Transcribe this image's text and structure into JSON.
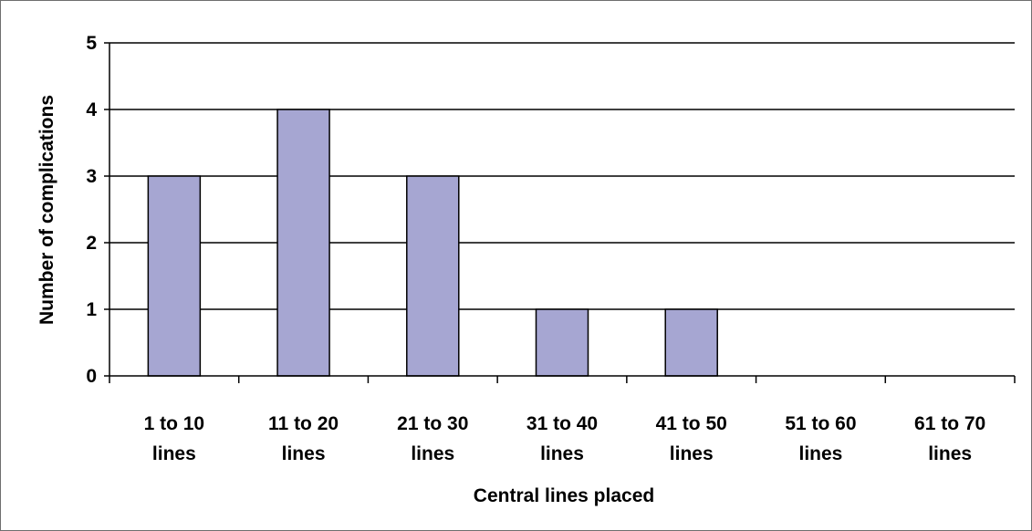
{
  "chart_data": {
    "type": "bar",
    "categories": [
      [
        "1 to 10",
        "lines"
      ],
      [
        "11 to 20",
        "lines"
      ],
      [
        "21 to 30",
        "lines"
      ],
      [
        "31 to 40",
        "lines"
      ],
      [
        "41 to 50",
        "lines"
      ],
      [
        "51 to 60",
        "lines"
      ],
      [
        "61 to 70",
        "lines"
      ]
    ],
    "values": [
      3,
      4,
      3,
      1,
      1,
      0,
      0
    ],
    "xlabel": "Central lines placed",
    "ylabel": "Number of complications",
    "ylim": [
      0,
      5
    ],
    "yticks": [
      "0",
      "1",
      "2",
      "3",
      "4",
      "5"
    ],
    "grid": "horizontal",
    "bar_color": "#a6a6d2",
    "bar_edge_color": "#000000"
  }
}
